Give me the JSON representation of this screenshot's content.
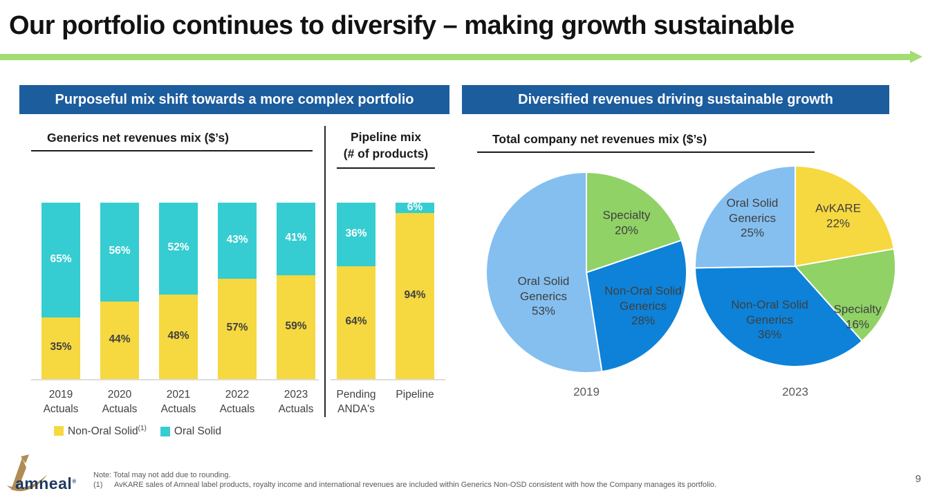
{
  "title": "Our portfolio continues to diversify – making growth sustainable",
  "page_number": "9",
  "colors": {
    "header_blue": "#1C5D9E",
    "accent_green_rule": "#A3DC73",
    "bar_yellow": "#F6D840",
    "bar_teal": "#35CDD1",
    "pie_light_blue": "#84BFF0",
    "pie_dark_blue": "#0D82D8",
    "pie_green": "#90D266",
    "pie_yellow": "#F6D840",
    "logo_gold": "#B08C55",
    "logo_navy": "#1E3A5F"
  },
  "left_panel": {
    "header": "Purposeful mix shift towards a more complex portfolio",
    "bar_section_title": "Generics net revenues mix ($’s)",
    "pipeline_title_line1": "Pipeline mix",
    "pipeline_title_line2": "(# of products)",
    "legend": [
      {
        "label": "Non-Oral Solid",
        "superscript": "(1)",
        "color": "#F6D840"
      },
      {
        "label": "Oral Solid",
        "superscript": "",
        "color": "#35CDD1"
      }
    ]
  },
  "right_panel": {
    "header": "Diversified revenues driving sustainable growth",
    "section_title": "Total company net revenues mix ($’s)"
  },
  "footer": {
    "logo_text": "amneal",
    "logo_mark": "®",
    "note_line1": "Note: Total may not add due to rounding.",
    "note_line2_ref": "(1)",
    "note_line2_text": "AvKARE sales of Amneal label products, royalty income and international revenues are included within Generics Non-OSD consistent with how the Company manages its portfolio."
  },
  "chart_data": [
    {
      "type": "bar",
      "stacked": true,
      "title": "Generics net revenues mix ($’s)",
      "unit": "%",
      "ylim": [
        0,
        100
      ],
      "grid": false,
      "categories": [
        "2019 Actuals",
        "2020 Actuals",
        "2021 Actuals",
        "2022 Actuals",
        "2023 Actuals"
      ],
      "series": [
        {
          "name": "Non-Oral Solid",
          "color": "#F6D840",
          "values": [
            35,
            44,
            48,
            57,
            59
          ]
        },
        {
          "name": "Oral Solid",
          "color": "#35CDD1",
          "values": [
            65,
            56,
            52,
            43,
            41
          ]
        }
      ]
    },
    {
      "type": "bar",
      "stacked": true,
      "title": "Pipeline mix (# of products)",
      "unit": "%",
      "ylim": [
        0,
        100
      ],
      "grid": false,
      "categories": [
        "Pending ANDA's",
        "Pipeline"
      ],
      "series": [
        {
          "name": "Non-Oral Solid",
          "color": "#F6D840",
          "values": [
            64,
            94
          ]
        },
        {
          "name": "Oral Solid",
          "color": "#35CDD1",
          "values": [
            36,
            6
          ]
        }
      ]
    },
    {
      "type": "pie",
      "title": "2019",
      "start_angle_deg": 0,
      "direction": "clockwise",
      "slices": [
        {
          "label": "Specialty",
          "value": 20,
          "color": "#90D266"
        },
        {
          "label": "Non-Oral Solid Generics",
          "value": 28,
          "color": "#0D82D8"
        },
        {
          "label": "Oral Solid Generics",
          "value": 53,
          "color": "#84BFF0"
        }
      ]
    },
    {
      "type": "pie",
      "title": "2023",
      "start_angle_deg": 0,
      "direction": "clockwise",
      "slices": [
        {
          "label": "AvKARE",
          "value": 22,
          "color": "#F6D840"
        },
        {
          "label": "Specialty",
          "value": 16,
          "color": "#90D266"
        },
        {
          "label": "Non-Oral Solid Generics",
          "value": 36,
          "color": "#0D82D8"
        },
        {
          "label": "Oral Solid Generics",
          "value": 25,
          "color": "#84BFF0"
        }
      ]
    }
  ]
}
